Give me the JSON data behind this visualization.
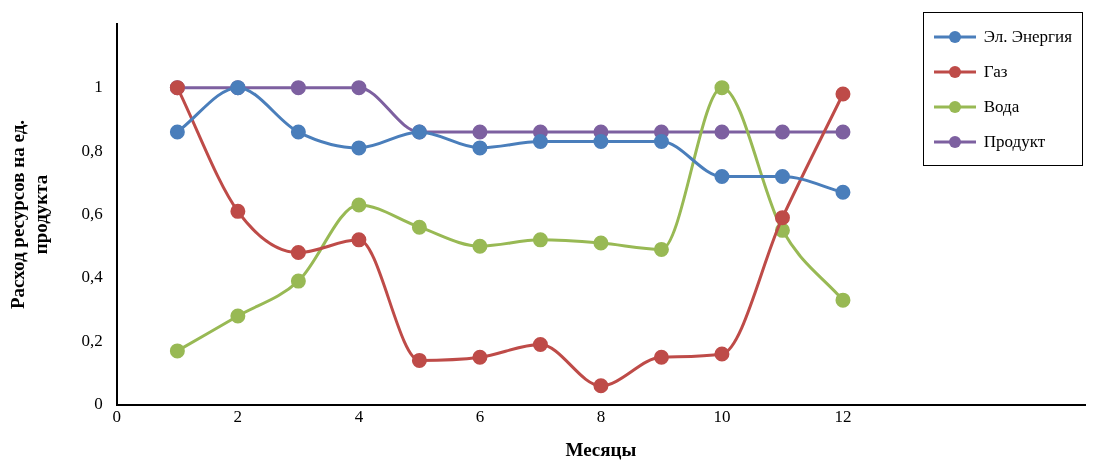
{
  "chart_data": {
    "type": "line",
    "xlabel": "Месяцы",
    "ylabel": "Расход ресурсов на ед. продукта",
    "x": [
      1,
      2,
      3,
      4,
      5,
      6,
      7,
      8,
      9,
      10,
      11,
      12
    ],
    "xlim": [
      0,
      16
    ],
    "xticks": [
      0,
      2,
      4,
      6,
      8,
      10,
      12
    ],
    "ylim": [
      0,
      1.2
    ],
    "yticks": [
      0,
      {
        "value": 0.2,
        "label": "0,2"
      },
      {
        "value": 0.4,
        "label": "0,4"
      },
      {
        "value": 0.6,
        "label": "0,6"
      },
      {
        "value": 0.8,
        "label": "0,8"
      },
      1
    ],
    "grid": false,
    "legend": "top right",
    "marker": "circle",
    "line_style": "solid",
    "series": [
      {
        "name": "Эл. Энергия",
        "color": "#4a7ebb",
        "values": [
          0.86,
          1.0,
          0.86,
          0.81,
          0.86,
          0.81,
          0.83,
          0.83,
          0.83,
          0.72,
          0.72,
          0.67
        ]
      },
      {
        "name": "Газ",
        "color": "#be4b48",
        "values": [
          1.0,
          0.61,
          0.48,
          0.52,
          0.14,
          0.15,
          0.19,
          0.06,
          0.15,
          0.16,
          0.59,
          0.98
        ]
      },
      {
        "name": "Вода",
        "color": "#98b954",
        "values": [
          0.17,
          0.28,
          0.39,
          0.63,
          0.56,
          0.5,
          0.52,
          0.51,
          0.49,
          1.0,
          0.55,
          0.33
        ]
      },
      {
        "name": "Продукт",
        "color": "#7d60a0",
        "values": [
          1.0,
          1.0,
          1.0,
          1.0,
          0.86,
          0.86,
          0.86,
          0.86,
          0.86,
          0.86,
          0.86,
          0.86
        ]
      }
    ]
  }
}
